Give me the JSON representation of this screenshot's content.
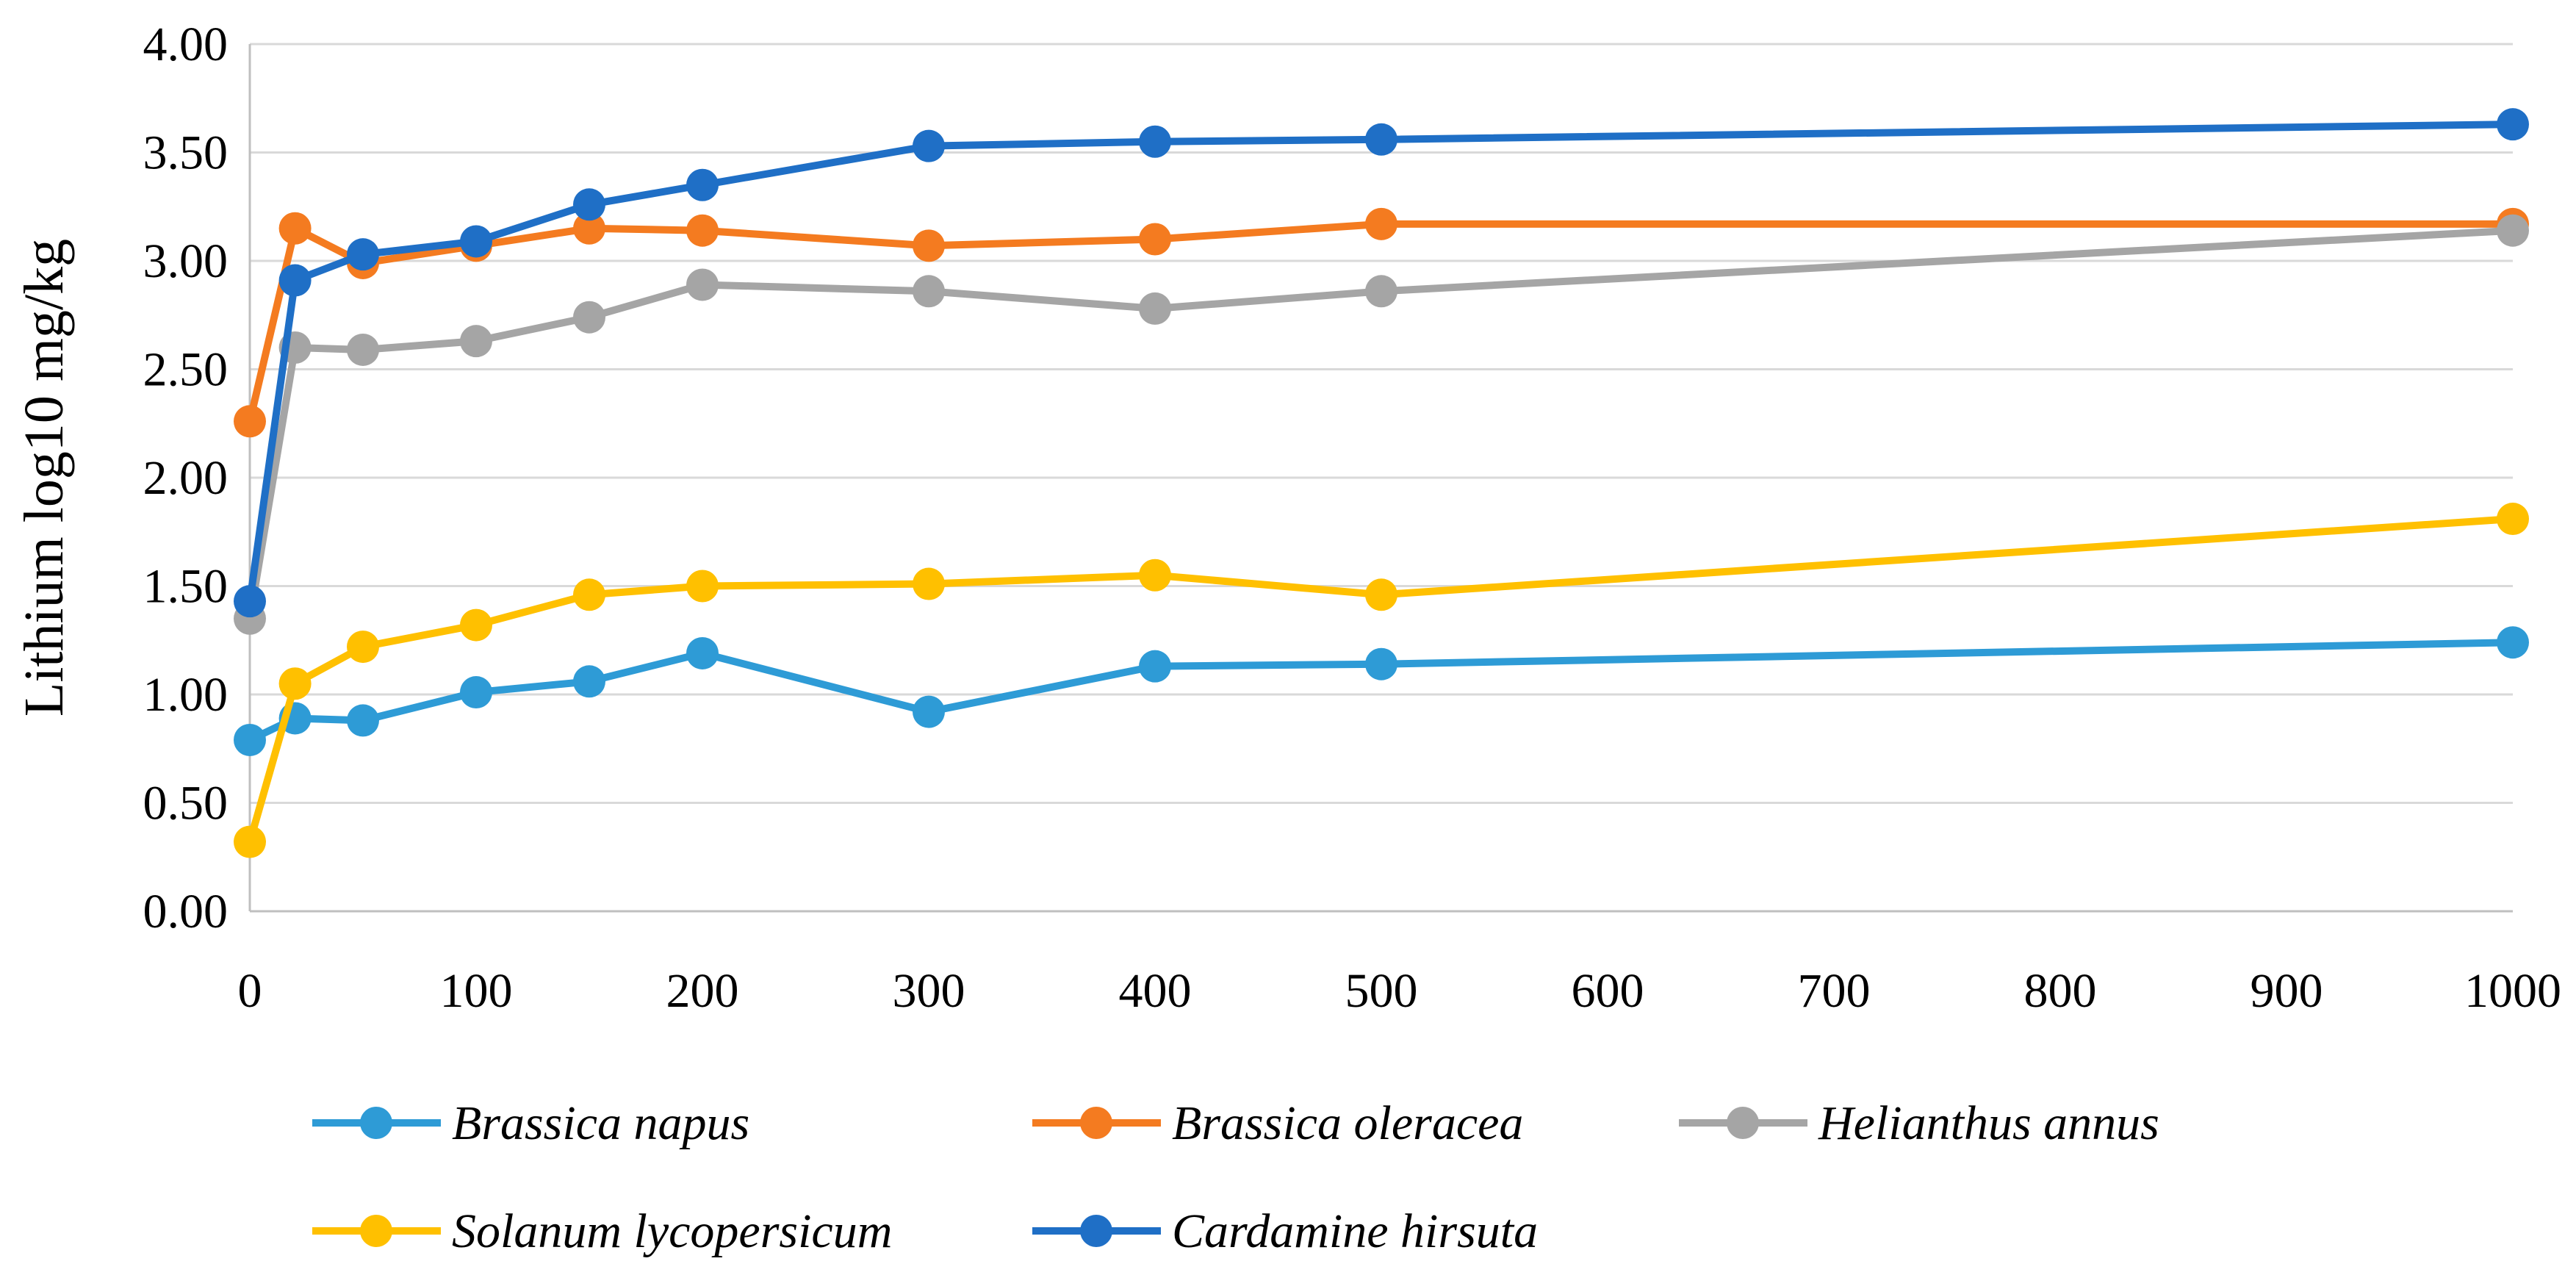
{
  "chart_data": {
    "type": "line",
    "title": "",
    "xlabel": "",
    "ylabel": "Lithium log10 mg/kg",
    "xlim": [
      0,
      1000
    ],
    "ylim": [
      0,
      4
    ],
    "x_ticks": [
      "0",
      "100",
      "200",
      "300",
      "400",
      "500",
      "600",
      "700",
      "800",
      "900",
      "1000"
    ],
    "y_ticks": [
      "0.00",
      "0.50",
      "1.00",
      "1.50",
      "2.00",
      "2.50",
      "3.00",
      "3.50",
      "4.00"
    ],
    "grid": "horizontal",
    "legend_position": "bottom",
    "x": [
      0,
      20,
      50,
      100,
      150,
      200,
      300,
      400,
      500,
      1000
    ],
    "series": [
      {
        "name": "Brassica napus",
        "color": "#2e9bd6",
        "values": [
          0.79,
          0.89,
          0.88,
          1.01,
          1.06,
          1.19,
          0.92,
          1.13,
          1.14,
          1.24
        ]
      },
      {
        "name": "Brassica oleracea",
        "color": "#f47b20",
        "values": [
          2.26,
          3.15,
          2.99,
          3.07,
          3.15,
          3.14,
          3.07,
          3.1,
          3.17,
          3.17
        ]
      },
      {
        "name": "Helianthus annus",
        "color": "#a5a5a5",
        "values": [
          1.35,
          2.6,
          2.59,
          2.63,
          2.74,
          2.89,
          2.86,
          2.78,
          2.86,
          3.14
        ]
      },
      {
        "name": "Solanum lycopersicum",
        "color": "#ffc000",
        "values": [
          0.32,
          1.05,
          1.22,
          1.32,
          1.46,
          1.5,
          1.51,
          1.55,
          1.46,
          1.81
        ]
      },
      {
        "name": "Cardamine hirsuta",
        "color": "#1f6fc6",
        "values": [
          1.43,
          2.91,
          3.03,
          3.09,
          3.26,
          3.35,
          3.53,
          3.55,
          3.56,
          3.63
        ]
      }
    ]
  }
}
